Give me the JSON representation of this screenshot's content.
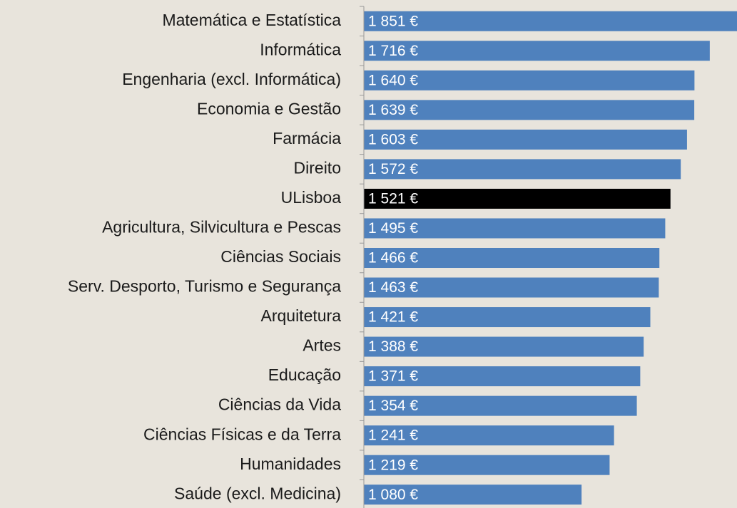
{
  "chart_data": {
    "type": "barh",
    "categories": [
      "Matemática e Estatística",
      "Informática",
      "Engenharia (excl. Informática)",
      "Economia e Gestão",
      "Farmácia",
      "Direito",
      "ULisboa",
      "Agricultura, Silvicultura e Pescas",
      "Ciências Sociais",
      "Serv. Desporto, Turismo e Segurança",
      "Arquitetura",
      "Artes",
      "Educação",
      "Ciências da Vida",
      "Ciências Físicas e da Terra",
      "Humanidades",
      "Saúde (excl. Medicina)"
    ],
    "values": [
      1851,
      1716,
      1640,
      1639,
      1603,
      1572,
      1521,
      1495,
      1466,
      1463,
      1421,
      1388,
      1371,
      1354,
      1241,
      1219,
      1080
    ],
    "value_labels": [
      "1 851 €",
      "1 716 €",
      "1 640 €",
      "1 639 €",
      "1 603 €",
      "1 572 €",
      "1 521 €",
      "1 495 €",
      "1 466 €",
      "1 463 €",
      "1 421 €",
      "1 388 €",
      "1 371 €",
      "1 354 €",
      "1 241 €",
      "1 219 €",
      "1 080 €"
    ],
    "colors": [
      "#4f81bd",
      "#4f81bd",
      "#4f81bd",
      "#4f81bd",
      "#4f81bd",
      "#4f81bd",
      "#000000",
      "#4f81bd",
      "#4f81bd",
      "#4f81bd",
      "#4f81bd",
      "#4f81bd",
      "#4f81bd",
      "#4f81bd",
      "#4f81bd",
      "#4f81bd",
      "#4f81bd"
    ],
    "xlim": [
      0,
      1851
    ]
  }
}
